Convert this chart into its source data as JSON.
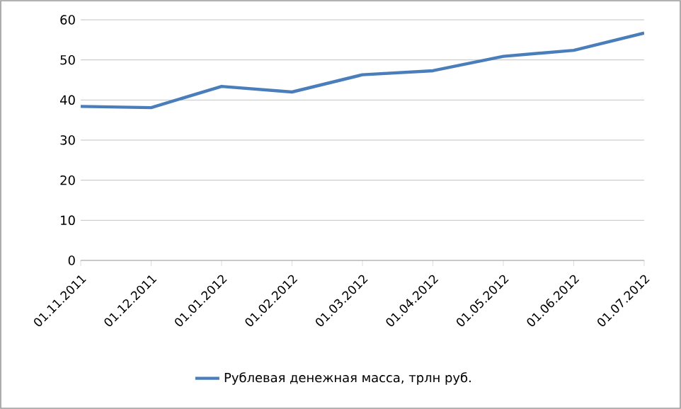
{
  "chart_data": {
    "type": "line",
    "categories": [
      "01.11.2011",
      "01.12.2011",
      "01.01.2012",
      "01.02.2012",
      "01.03.2012",
      "01.04.2012",
      "01.05.2012",
      "01.06.2012",
      "01.07.2012"
    ],
    "series": [
      {
        "name": "Рублевая денежная масса, трлн руб.",
        "color": "#4a7ebb",
        "values": [
          38.4,
          38.1,
          43.4,
          42.0,
          46.3,
          47.3,
          50.9,
          52.4,
          56.7
        ]
      }
    ],
    "ylim": [
      0,
      60
    ],
    "yticks": [
      0,
      10,
      20,
      30,
      40,
      50,
      60
    ],
    "grid": "y",
    "legend": "bottom",
    "marker": "none",
    "line_style": "solid"
  }
}
